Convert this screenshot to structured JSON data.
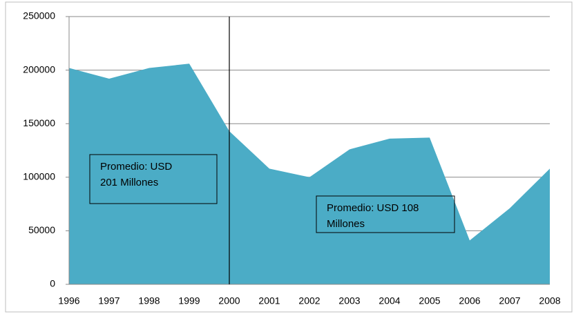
{
  "chart_data": {
    "type": "area",
    "categories": [
      "1996",
      "1997",
      "1998",
      "1999",
      "2000",
      "2001",
      "2002",
      "2003",
      "2004",
      "2005",
      "2006",
      "2007",
      "2008"
    ],
    "values": [
      202000,
      192000,
      202000,
      206000,
      143000,
      108000,
      100000,
      126000,
      136000,
      137000,
      41000,
      71000,
      108000
    ],
    "color": "#4bacc6",
    "ylim": [
      0,
      250000
    ],
    "yticks": [
      0,
      50000,
      100000,
      150000,
      200000,
      250000
    ],
    "grid": true,
    "divider": "2000",
    "annotations": [
      [
        "Promedio: USD",
        "201 Millones"
      ],
      [
        "Promedio: USD 108",
        "Millones"
      ]
    ]
  }
}
